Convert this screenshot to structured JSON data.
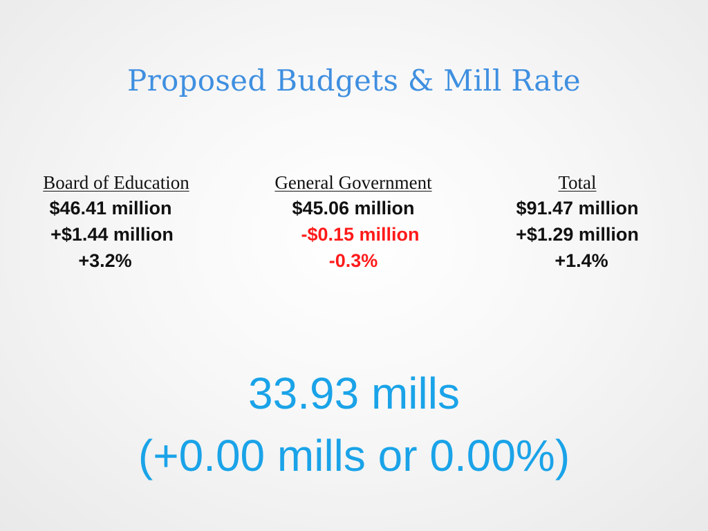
{
  "slide": {
    "title": "Proposed Budgets & Mill Rate"
  },
  "columns": {
    "board_of_education": {
      "header": "Board of Education",
      "amount": "$46.41 million",
      "change": "+$1.44 million",
      "percent": "+3.2%"
    },
    "general_government": {
      "header": "General Government",
      "amount": "$45.06 million",
      "change": "-$0.15 million",
      "percent": "-0.3%"
    },
    "total": {
      "header": "Total",
      "amount": "$91.47 million",
      "change": "+$1.29 million",
      "percent": "+1.4%"
    }
  },
  "mill_rate": {
    "value": "33.93 mills",
    "change": "(+0.00 mills or 0.00%)"
  },
  "colors": {
    "title": "#3f8fe0",
    "negative": "#ff1a1a",
    "mill_rate": "#1aa3e8",
    "text": "#111111"
  }
}
